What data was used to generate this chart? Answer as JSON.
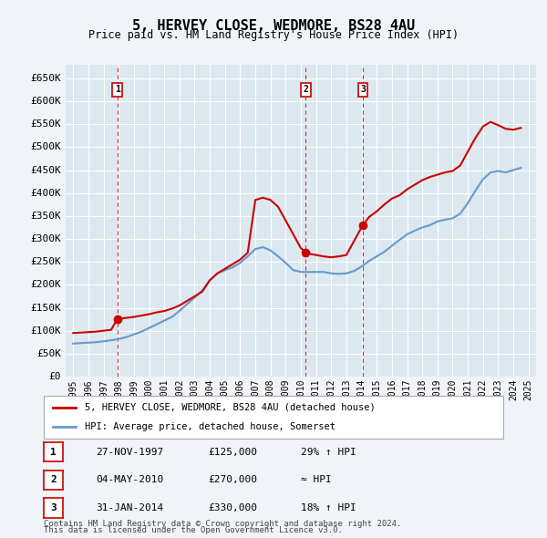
{
  "title": "5, HERVEY CLOSE, WEDMORE, BS28 4AU",
  "subtitle": "Price paid vs. HM Land Registry's House Price Index (HPI)",
  "ylabel_ticks": [
    0,
    50000,
    100000,
    150000,
    200000,
    250000,
    300000,
    350000,
    400000,
    450000,
    500000,
    550000,
    600000,
    650000
  ],
  "ylabel_labels": [
    "£0",
    "£50K",
    "£100K",
    "£150K",
    "£200K",
    "£250K",
    "£300K",
    "£350K",
    "£400K",
    "£450K",
    "£500K",
    "£550K",
    "£600K",
    "£650K"
  ],
  "xlim": [
    1994.5,
    2025.5
  ],
  "ylim": [
    0,
    680000
  ],
  "property_color": "#cc0000",
  "hpi_color": "#6699cc",
  "sale_marker_color": "#cc0000",
  "vline_color": "#cc0000",
  "sales": [
    {
      "num": 1,
      "year": 1997.9,
      "price": 125000,
      "label": "27-NOV-1997",
      "price_str": "£125,000",
      "note": "29% ↑ HPI"
    },
    {
      "num": 2,
      "year": 2010.33,
      "price": 270000,
      "label": "04-MAY-2010",
      "price_str": "£270,000",
      "note": "≈ HPI"
    },
    {
      "num": 3,
      "year": 2014.08,
      "price": 330000,
      "label": "31-JAN-2014",
      "price_str": "£330,000",
      "note": "18% ↑ HPI"
    }
  ],
  "legend_property": "5, HERVEY CLOSE, WEDMORE, BS28 4AU (detached house)",
  "legend_hpi": "HPI: Average price, detached house, Somerset",
  "footnote1": "Contains HM Land Registry data © Crown copyright and database right 2024.",
  "footnote2": "This data is licensed under the Open Government Licence v3.0.",
  "property_line": {
    "x": [
      1995.0,
      1995.5,
      1996.0,
      1996.5,
      1997.0,
      1997.5,
      1997.9,
      1998.0,
      1998.5,
      1999.0,
      1999.5,
      2000.0,
      2000.5,
      2001.0,
      2001.5,
      2002.0,
      2002.5,
      2003.0,
      2003.5,
      2004.0,
      2004.5,
      2005.0,
      2005.5,
      2006.0,
      2006.5,
      2007.0,
      2007.5,
      2008.0,
      2008.5,
      2009.0,
      2009.5,
      2010.0,
      2010.33,
      2010.5,
      2011.0,
      2011.5,
      2012.0,
      2012.5,
      2013.0,
      2013.5,
      2014.08,
      2014.5,
      2015.0,
      2015.5,
      2016.0,
      2016.5,
      2017.0,
      2017.5,
      2018.0,
      2018.5,
      2019.0,
      2019.5,
      2020.0,
      2020.5,
      2021.0,
      2021.5,
      2022.0,
      2022.5,
      2023.0,
      2023.5,
      2024.0,
      2024.5
    ],
    "y": [
      95000,
      96000,
      97000,
      98000,
      100000,
      102000,
      125000,
      126000,
      128000,
      130000,
      133000,
      136000,
      140000,
      143000,
      148000,
      155000,
      165000,
      175000,
      185000,
      210000,
      225000,
      235000,
      245000,
      255000,
      270000,
      385000,
      390000,
      385000,
      370000,
      340000,
      310000,
      280000,
      270000,
      268000,
      265000,
      262000,
      260000,
      262000,
      265000,
      295000,
      330000,
      348000,
      360000,
      375000,
      388000,
      395000,
      408000,
      418000,
      428000,
      435000,
      440000,
      445000,
      448000,
      460000,
      490000,
      520000,
      545000,
      555000,
      548000,
      540000,
      538000,
      542000
    ]
  },
  "hpi_line": {
    "x": [
      1995.0,
      1995.5,
      1996.0,
      1996.5,
      1997.0,
      1997.5,
      1998.0,
      1998.5,
      1999.0,
      1999.5,
      2000.0,
      2000.5,
      2001.0,
      2001.5,
      2002.0,
      2002.5,
      2003.0,
      2003.5,
      2004.0,
      2004.5,
      2005.0,
      2005.5,
      2006.0,
      2006.5,
      2007.0,
      2007.5,
      2008.0,
      2008.5,
      2009.0,
      2009.5,
      2010.0,
      2010.5,
      2011.0,
      2011.5,
      2012.0,
      2012.5,
      2013.0,
      2013.5,
      2014.0,
      2014.5,
      2015.0,
      2015.5,
      2016.0,
      2016.5,
      2017.0,
      2017.5,
      2018.0,
      2018.5,
      2019.0,
      2019.5,
      2020.0,
      2020.5,
      2021.0,
      2021.5,
      2022.0,
      2022.5,
      2023.0,
      2023.5,
      2024.0,
      2024.5
    ],
    "y": [
      72000,
      73000,
      74000,
      75000,
      77000,
      79000,
      82000,
      86000,
      92000,
      98000,
      106000,
      114000,
      122000,
      130000,
      143000,
      158000,
      172000,
      188000,
      210000,
      225000,
      232000,
      238000,
      248000,
      262000,
      278000,
      282000,
      275000,
      262000,
      248000,
      232000,
      228000,
      228000,
      228000,
      228000,
      225000,
      224000,
      225000,
      230000,
      240000,
      252000,
      262000,
      272000,
      285000,
      298000,
      310000,
      318000,
      325000,
      330000,
      338000,
      342000,
      345000,
      355000,
      378000,
      405000,
      430000,
      445000,
      448000,
      445000,
      450000,
      455000
    ]
  },
  "background_color": "#f0f4f8",
  "plot_bg_color": "#dce8f0",
  "grid_color": "#ffffff"
}
